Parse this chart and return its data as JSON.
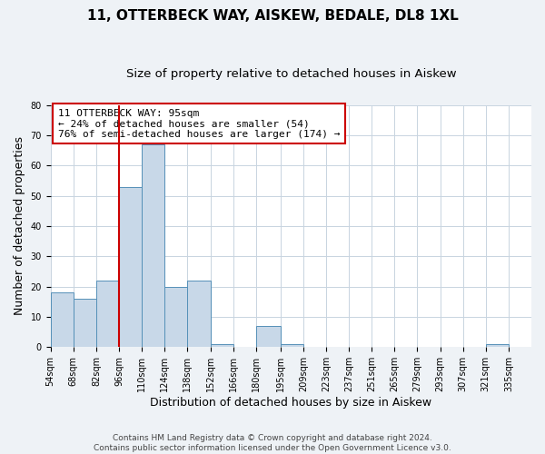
{
  "title": "11, OTTERBECK WAY, AISKEW, BEDALE, DL8 1XL",
  "subtitle": "Size of property relative to detached houses in Aiskew",
  "xlabel": "Distribution of detached houses by size in Aiskew",
  "ylabel": "Number of detached properties",
  "footnote1": "Contains HM Land Registry data © Crown copyright and database right 2024.",
  "footnote2": "Contains public sector information licensed under the Open Government Licence v3.0.",
  "annotation_line1": "11 OTTERBECK WAY: 95sqm",
  "annotation_line2": "← 24% of detached houses are smaller (54)",
  "annotation_line3": "76% of semi-detached houses are larger (174) →",
  "bar_edges": [
    54,
    68,
    82,
    96,
    110,
    124,
    138,
    152,
    166,
    180,
    195,
    209,
    223,
    237,
    251,
    265,
    279,
    293,
    307,
    321,
    335
  ],
  "bar_heights": [
    18,
    16,
    22,
    53,
    67,
    20,
    22,
    1,
    0,
    7,
    1,
    0,
    0,
    0,
    0,
    0,
    0,
    0,
    0,
    1,
    0
  ],
  "bar_color": "#c8d8e8",
  "bar_edge_color": "#5590b8",
  "vline_color": "#cc0000",
  "vline_x": 96,
  "annotation_box_color": "#cc0000",
  "ylim": [
    0,
    80
  ],
  "yticks": [
    0,
    10,
    20,
    30,
    40,
    50,
    60,
    70,
    80
  ],
  "background_color": "#eef2f6",
  "plot_bg_color": "#ffffff",
  "grid_color": "#c8d4e0",
  "title_fontsize": 11,
  "subtitle_fontsize": 9.5,
  "label_fontsize": 9,
  "tick_label_fontsize": 7,
  "annotation_fontsize": 8,
  "footnote_fontsize": 6.5
}
